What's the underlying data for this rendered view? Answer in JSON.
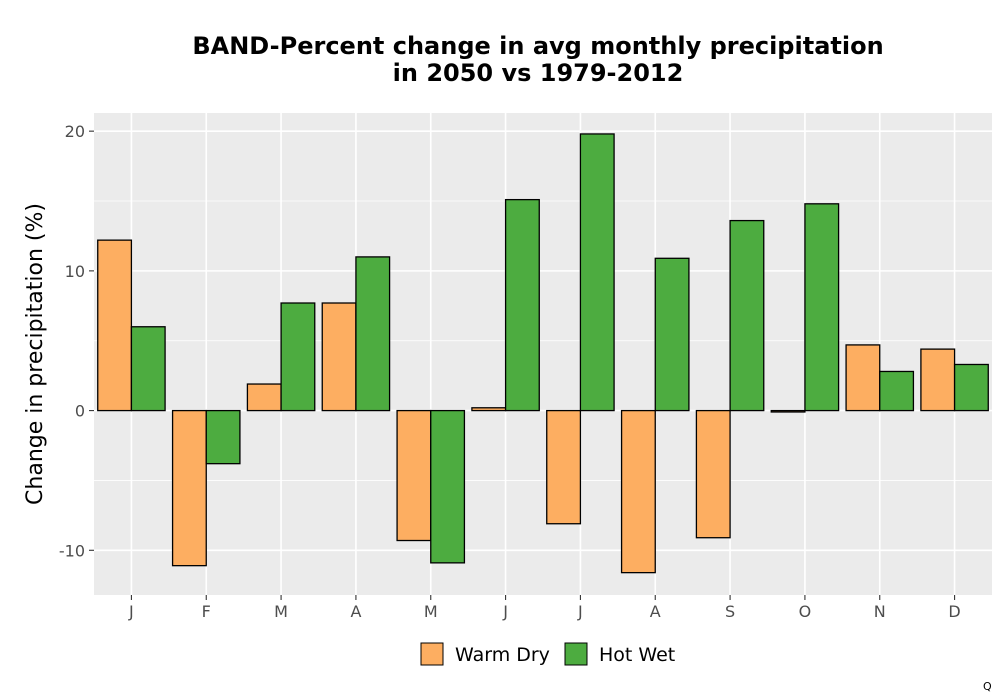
{
  "chart_data": {
    "type": "bar",
    "title_lines": [
      "BAND-Percent change in avg monthly precipitation",
      "in 2050 vs 1979-2012"
    ],
    "xlabel": "",
    "ylabel": "Change in precipitation (%)",
    "categories": [
      "J",
      "F",
      "M",
      "A",
      "M",
      "J",
      "J",
      "A",
      "S",
      "O",
      "N",
      "D"
    ],
    "series": [
      {
        "name": "Warm Dry",
        "color": "#FDAE61",
        "values": [
          12.2,
          -11.1,
          1.9,
          7.7,
          -9.3,
          0.2,
          -8.1,
          -11.6,
          -9.1,
          -0.1,
          4.7,
          4.4
        ]
      },
      {
        "name": "Hot Wet",
        "color": "#4DAC40",
        "values": [
          6.0,
          -3.8,
          7.7,
          11.0,
          -10.9,
          15.1,
          19.8,
          10.9,
          13.6,
          14.8,
          2.8,
          3.3
        ]
      }
    ],
    "ylim": [
      -13.2,
      21.3
    ],
    "yticks": [
      -10,
      0,
      10,
      20
    ],
    "ytick_labels": [
      "-10",
      "0",
      "10",
      "20"
    ],
    "grid": true,
    "panel_background": "#EBEBEB",
    "legend_position": "bottom"
  },
  "corner_mark": "Q"
}
